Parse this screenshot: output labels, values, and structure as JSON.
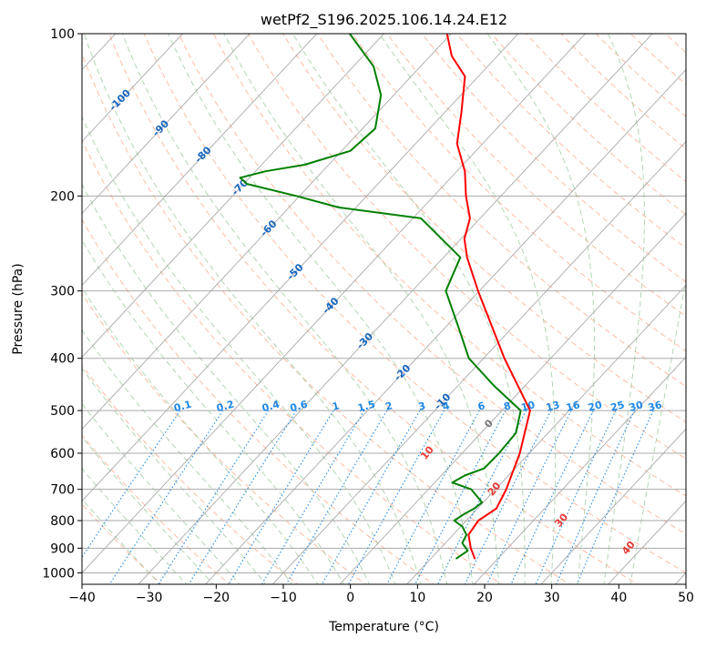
{
  "chart_data": {
    "type": "line",
    "subtype": "skew-t log-p",
    "title": "wetPf2_S196.2025.106.14.24.E12",
    "xlabel": "Temperature (°C)",
    "ylabel": "Pressure (hPa)",
    "xlim": [
      -40,
      50
    ],
    "ylim": [
      1050,
      100
    ],
    "yscale": "log",
    "skew_deg_per_decade": 75,
    "xticks": [
      -40,
      -30,
      -20,
      -10,
      0,
      10,
      20,
      30,
      40,
      50
    ],
    "xtick_labels": [
      "−40",
      "−30",
      "−20",
      "−10",
      "0",
      "10",
      "20",
      "30",
      "40",
      "50"
    ],
    "yticks": [
      1000,
      900,
      800,
      700,
      600,
      500,
      400,
      300,
      200,
      100
    ],
    "ytick_labels": [
      "1000",
      "900",
      "800",
      "700",
      "600",
      "500",
      "400",
      "300",
      "200",
      "100"
    ],
    "grid": true,
    "colors": {
      "temperature": "#ff0000",
      "dewpoint": "#008000",
      "isotherm": "#aaaaaa",
      "dry_adiabat": "#ffa07a",
      "moist_adiabat": "#98c898",
      "mixing_ratio": "#1e88e5",
      "dry_adiabat_label": "#e53935",
      "moist_adiabat_label": "#1565c0",
      "freezing_label": "#777777"
    },
    "series": [
      {
        "key": "temperature",
        "points": [
          [
            940,
            16.5
          ],
          [
            900,
            14.5
          ],
          [
            850,
            12.3
          ],
          [
            800,
            11.8
          ],
          [
            760,
            12.8
          ],
          [
            700,
            11.6
          ],
          [
            600,
            8.6
          ],
          [
            500,
            4.2
          ],
          [
            400,
            -6.9
          ],
          [
            300,
            -20.2
          ],
          [
            260,
            -26.5
          ],
          [
            240,
            -29.5
          ],
          [
            220,
            -31.5
          ],
          [
            200,
            -35.2
          ],
          [
            180,
            -38.8
          ],
          [
            160,
            -43.8
          ],
          [
            140,
            -47.5
          ],
          [
            120,
            -52.0
          ],
          [
            110,
            -56.8
          ],
          [
            100,
            -60.6
          ]
        ]
      },
      {
        "key": "dewpoint",
        "points": [
          [
            940,
            13.8
          ],
          [
            910,
            14.4
          ],
          [
            880,
            12.5
          ],
          [
            850,
            12.0
          ],
          [
            820,
            10.2
          ],
          [
            800,
            8.2
          ],
          [
            780,
            8.7
          ],
          [
            760,
            9.5
          ],
          [
            740,
            9.8
          ],
          [
            700,
            6.4
          ],
          [
            680,
            2.6
          ],
          [
            660,
            3.5
          ],
          [
            640,
            5.4
          ],
          [
            600,
            5.5
          ],
          [
            550,
            5.2
          ],
          [
            500,
            2.8
          ],
          [
            450,
            -4.6
          ],
          [
            400,
            -12.2
          ],
          [
            350,
            -18.1
          ],
          [
            300,
            -25.0
          ],
          [
            260,
            -27.5
          ],
          [
            220,
            -38.8
          ],
          [
            210,
            -52.6
          ],
          [
            200,
            -60.5
          ],
          [
            190,
            -69.5
          ],
          [
            185,
            -71.4
          ],
          [
            180,
            -68.5
          ],
          [
            175,
            -63.6
          ],
          [
            165,
            -58.7
          ],
          [
            150,
            -58.1
          ],
          [
            130,
            -61.9
          ],
          [
            115,
            -67.0
          ],
          [
            100,
            -75.1
          ]
        ]
      }
    ],
    "dry_adiabat_labels": [
      {
        "value": 10,
        "text": "10"
      },
      {
        "value": 20,
        "text": "20"
      },
      {
        "value": 30,
        "text": "30"
      },
      {
        "value": 40,
        "text": "40"
      }
    ],
    "moist_adiabat_labels": [
      {
        "text": "-100",
        "t": -100,
        "p": 133
      },
      {
        "text": "-90",
        "t": -90,
        "p": 150
      },
      {
        "text": "-80",
        "t": -80,
        "p": 168
      },
      {
        "text": "-70",
        "t": -70,
        "p": 193
      },
      {
        "text": "-60",
        "t": -60,
        "p": 230
      },
      {
        "text": "-50",
        "t": -50,
        "p": 277
      },
      {
        "text": "-40",
        "t": -40,
        "p": 320
      },
      {
        "text": "-30",
        "t": -30,
        "p": 372
      },
      {
        "text": "-20",
        "t": -20,
        "p": 426
      },
      {
        "text": "-10",
        "t": -10,
        "p": 482
      }
    ],
    "freezing_label": {
      "text": "0",
      "t": 0,
      "p": 530
    },
    "mixing_ratio_labels": [
      "0.1",
      "0.2",
      "0.4",
      "0.6",
      "1",
      "1.5",
      "2",
      "3",
      "4",
      "6",
      "8",
      "10",
      "13",
      "16",
      "20",
      "25",
      "30",
      "36"
    ],
    "mixing_ratio_values": [
      0.1,
      0.2,
      0.4,
      0.6,
      1,
      1.5,
      2,
      3,
      4,
      6,
      8,
      10,
      13,
      16,
      20,
      25,
      30,
      36
    ]
  }
}
